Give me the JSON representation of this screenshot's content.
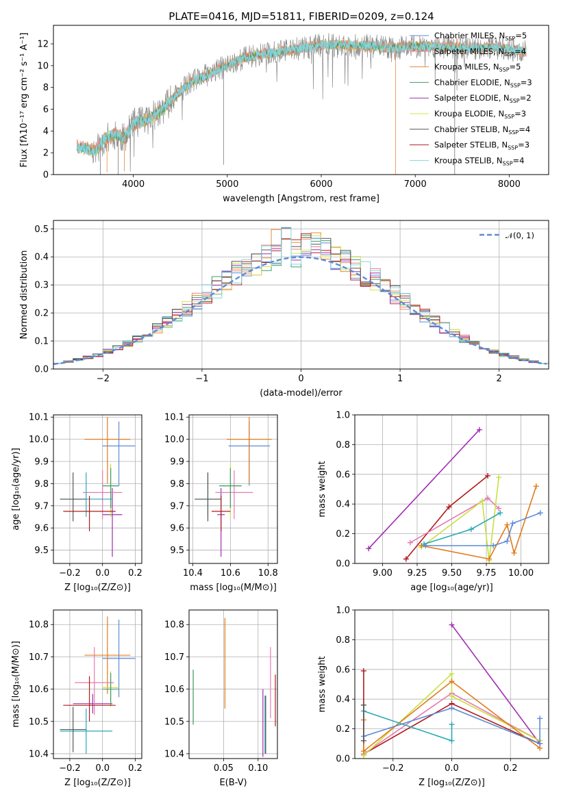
{
  "title": "PLATE=0416, MJD=51811, FIBERID=0209, z=0.124",
  "colors": {
    "chabrier_miles": "#5b8bd6",
    "salpeter_miles": "#e77f7f",
    "kroupa_miles": "#e8893a",
    "chabrier_elodie": "#3c9c6a",
    "salpeter_elodie": "#9b2fae",
    "kroupa_elodie": "#d7e34a",
    "chabrier_stelib": "#555555",
    "salpeter_stelib": "#b01f26",
    "kroupa_stelib": "#86d3dd",
    "grid": "#b0b0b0",
    "normal_curve": "#5b8bd6",
    "mw_blue": "#5b8bd6",
    "mw_orange": "#e07b1c",
    "mw_purple": "#a02ab2",
    "mw_red": "#b01a1a",
    "mw_pink": "#e57ab0",
    "mw_lime": "#c9df3e",
    "mw_teal": "#28a8b6"
  },
  "legend_spectrum": [
    {
      "text": "Chabrier MILES, N",
      "sub": "SSP",
      "suffix": "=5",
      "color": "#5b8bd6"
    },
    {
      "text": "Salpeter MILES, N",
      "sub": "SSP",
      "suffix": "=4",
      "color": "#e77f7f"
    },
    {
      "text": "Kroupa MILES, N",
      "sub": "SSP",
      "suffix": "=5",
      "color": "#e8893a"
    },
    {
      "text": "Chabrier ELODIE, N",
      "sub": "SSP",
      "suffix": "=3",
      "color": "#3c9c6a"
    },
    {
      "text": "Salpeter ELODIE, N",
      "sub": "SSP",
      "suffix": "=2",
      "color": "#9b2fae"
    },
    {
      "text": "Kroupa ELODIE, N",
      "sub": "SSP",
      "suffix": "=3",
      "color": "#d7e34a"
    },
    {
      "text": "Chabrier STELIB, N",
      "sub": "SSP",
      "suffix": "=4",
      "color": "#555555"
    },
    {
      "text": "Salpeter STELIB, N",
      "sub": "SSP",
      "suffix": "=3",
      "color": "#b01f26"
    },
    {
      "text": "Kroupa STELIB, N",
      "sub": "SSP",
      "suffix": "=4",
      "color": "#86d3dd"
    }
  ],
  "chart_data": [
    {
      "id": "spectrum",
      "type": "line",
      "xlabel": "wavelength [Angstrom, rest frame]",
      "ylabel": "Flux [fλ10⁻¹⁷ erg cm⁻² s⁻¹ A⁻¹]",
      "xlim": [
        3150,
        8420
      ],
      "ylim": [
        0,
        13.7
      ],
      "xticks": [
        4000,
        5000,
        6000,
        7000,
        8000
      ],
      "yticks": [
        0,
        2,
        4,
        6,
        8,
        10,
        12
      ],
      "grid": false,
      "legend": "upper right",
      "continuum": [
        [
          3400,
          2.6
        ],
        [
          3600,
          2.2
        ],
        [
          3700,
          3.3
        ],
        [
          3800,
          3.7
        ],
        [
          3900,
          3.3
        ],
        [
          4000,
          4.7
        ],
        [
          4150,
          5.0
        ],
        [
          4300,
          5.9
        ],
        [
          4400,
          6.8
        ],
        [
          4600,
          8.4
        ],
        [
          4800,
          9.2
        ],
        [
          5000,
          10.0
        ],
        [
          5200,
          10.8
        ],
        [
          5500,
          11.2
        ],
        [
          5800,
          11.6
        ],
        [
          6000,
          11.9
        ],
        [
          6200,
          11.9
        ],
        [
          6500,
          11.8
        ],
        [
          6800,
          11.6
        ],
        [
          7000,
          11.8
        ],
        [
          7300,
          11.7
        ],
        [
          7600,
          11.6
        ],
        [
          7800,
          11.7
        ],
        [
          8000,
          11.5
        ],
        [
          8150,
          11.3
        ]
      ],
      "features": [
        [
          3650,
          0
        ],
        [
          3720,
          0.2
        ],
        [
          3840,
          0
        ],
        [
          3905,
          0.3
        ],
        [
          4960,
          0.9
        ],
        [
          6790,
          0
        ],
        [
          7420,
          0
        ],
        [
          7440,
          12.6
        ]
      ]
    },
    {
      "id": "residuals",
      "type": "histogram",
      "xlabel": "(data-model)/error",
      "ylabel": "Normed distribution",
      "xlim": [
        -2.5,
        2.5
      ],
      "ylim": [
        0,
        0.53
      ],
      "xticks": [
        -2,
        -1,
        0,
        1,
        2
      ],
      "yticks": [
        0.0,
        0.1,
        0.2,
        0.3,
        0.4,
        0.5
      ],
      "grid": true,
      "legend": "upper right",
      "curve_label": "𝒩(0, 1)",
      "bin_width": 0.1,
      "peak_values": [
        0.51,
        0.49,
        0.47,
        0.47,
        0.46,
        0.45,
        0.41,
        0.41,
        0.41,
        0.4,
        0.39
      ]
    },
    {
      "id": "age_vs_z",
      "type": "errorbar",
      "xlabel": "Z [log₁₀(Z/Z⊙)]",
      "ylabel": "age  [log₁₀(age/yr)]",
      "xlim": [
        -0.3,
        0.24
      ],
      "ylim": [
        9.44,
        10.11
      ],
      "xticks": [
        -0.2,
        0.0,
        0.2
      ],
      "yticks": [
        9.5,
        9.6,
        9.7,
        9.8,
        9.9,
        10.0,
        10.1
      ],
      "grid": true,
      "points": [
        {
          "x": 0.1,
          "xerr": 0.1,
          "y": 9.97,
          "yerr_lo": 0.18,
          "yerr_hi": 0.11,
          "color": "#5b8bd6"
        },
        {
          "x": 0.03,
          "xerr": 0.14,
          "y": 10.0,
          "yerr_lo": 0.2,
          "yerr_hi": 0.1,
          "color": "#e07b1c"
        },
        {
          "x": 0.06,
          "xerr": 0.06,
          "y": 9.66,
          "yerr_lo": 0.19,
          "yerr_hi": 0.12,
          "color": "#a02ab2"
        },
        {
          "x": 0.0,
          "xerr": 0.12,
          "y": 9.76,
          "yerr_lo": 0.12,
          "yerr_hi": 0.1,
          "color": "#e57ab0"
        },
        {
          "x": 0.05,
          "xerr": 0.05,
          "y": 9.79,
          "yerr_lo": 0.14,
          "yerr_hi": 0.1,
          "color": "#c9df3e"
        },
        {
          "x": 0.05,
          "xerr": 0.05,
          "y": 9.79,
          "yerr_lo": 0.1,
          "yerr_hi": 0.08,
          "color": "#3c9c6a"
        },
        {
          "x": -0.1,
          "xerr": 0.16,
          "y": 9.73,
          "yerr_lo": 0.08,
          "yerr_hi": 0.12,
          "color": "#28a8b6"
        },
        {
          "x": -0.18,
          "xerr": 0.08,
          "y": 9.73,
          "yerr_lo": 0.1,
          "yerr_hi": 0.12,
          "color": "#555555"
        },
        {
          "x": -0.08,
          "xerr": 0.16,
          "y": 9.675,
          "yerr_lo": 0.09,
          "yerr_hi": 0.07,
          "color": "#b01a1a"
        }
      ]
    },
    {
      "id": "age_vs_mass",
      "type": "errorbar",
      "xlabel": "mass [log₁₀(M/M⊙)]",
      "ylabel": "",
      "xlim": [
        10.38,
        10.85
      ],
      "ylim": [
        9.44,
        10.11
      ],
      "xticks": [
        10.4,
        10.6,
        10.8
      ],
      "yticks": [
        9.5,
        9.6,
        9.7,
        9.8,
        9.9,
        10.0,
        10.1
      ],
      "grid": true,
      "points": [
        {
          "x": 10.7,
          "xerr": 0.11,
          "y": 9.97,
          "yerr_lo": 0.18,
          "yerr_hi": 0.11,
          "color": "#5b8bd6"
        },
        {
          "x": 10.7,
          "xerr": 0.12,
          "y": 10.0,
          "yerr_lo": 0.2,
          "yerr_hi": 0.1,
          "color": "#e07b1c"
        },
        {
          "x": 10.55,
          "xerr": 0.02,
          "y": 9.66,
          "yerr_lo": 0.19,
          "yerr_hi": 0.12,
          "color": "#a02ab2"
        },
        {
          "x": 10.62,
          "xerr": 0.1,
          "y": 9.76,
          "yerr_lo": 0.12,
          "yerr_hi": 0.1,
          "color": "#e57ab0"
        },
        {
          "x": 10.6,
          "xerr": 0.06,
          "y": 9.79,
          "yerr_lo": 0.14,
          "yerr_hi": 0.1,
          "color": "#c9df3e"
        },
        {
          "x": 10.6,
          "xerr": 0.06,
          "y": 9.79,
          "yerr_lo": 0.1,
          "yerr_hi": 0.08,
          "color": "#3c9c6a"
        },
        {
          "x": 10.48,
          "xerr": 0.07,
          "y": 9.73,
          "yerr_lo": 0.08,
          "yerr_hi": 0.12,
          "color": "#28a8b6"
        },
        {
          "x": 10.48,
          "xerr": 0.07,
          "y": 9.73,
          "yerr_lo": 0.1,
          "yerr_hi": 0.12,
          "color": "#555555"
        },
        {
          "x": 10.55,
          "xerr": 0.05,
          "y": 9.675,
          "yerr_lo": 0.09,
          "yerr_hi": 0.07,
          "color": "#b01a1a"
        }
      ]
    },
    {
      "id": "mass_weight_vs_age",
      "type": "line",
      "xlabel": "age  [log₁₀(age/yr)]",
      "ylabel": "mass weight",
      "xlim": [
        8.8,
        10.2
      ],
      "ylim": [
        0.0,
        1.0
      ],
      "xticks": [
        9.0,
        9.25,
        9.5,
        9.75,
        10.0
      ],
      "yticks": [
        0.0,
        0.2,
        0.4,
        0.6,
        0.8,
        1.0
      ],
      "grid": true,
      "series": [
        {
          "color": "#a02ab2",
          "points": [
            [
              8.9,
              0.1
            ],
            [
              9.7,
              0.9
            ]
          ]
        },
        {
          "color": "#b01a1a",
          "points": [
            [
              9.17,
              0.03
            ],
            [
              9.48,
              0.38
            ],
            [
              9.76,
              0.59
            ]
          ]
        },
        {
          "color": "#e57ab0",
          "points": [
            [
              9.2,
              0.14
            ],
            [
              9.76,
              0.44
            ],
            [
              9.84,
              0.37
            ]
          ]
        },
        {
          "color": "#c9df3e",
          "points": [
            [
              9.28,
              0.11
            ],
            [
              9.72,
              0.42
            ],
            [
              9.77,
              0.02
            ],
            [
              9.84,
              0.58
            ]
          ]
        },
        {
          "color": "#e07b1c",
          "points": [
            [
              9.28,
              0.12
            ],
            [
              9.77,
              0.03
            ],
            [
              9.9,
              0.26
            ],
            [
              9.95,
              0.07
            ],
            [
              10.11,
              0.52
            ]
          ]
        },
        {
          "color": "#28a8b6",
          "points": [
            [
              9.3,
              0.13
            ],
            [
              9.64,
              0.23
            ],
            [
              9.85,
              0.34
            ]
          ]
        },
        {
          "color": "#5b8bd6",
          "points": [
            [
              9.31,
              0.12
            ],
            [
              9.8,
              0.12
            ],
            [
              9.9,
              0.15
            ],
            [
              9.94,
              0.27
            ],
            [
              10.14,
              0.34
            ]
          ]
        }
      ]
    },
    {
      "id": "mass_vs_z",
      "type": "errorbar",
      "xlabel": "Z [log₁₀(Z/Z⊙)]",
      "ylabel": "mass [log₁₀(M/M⊙)]",
      "xlim": [
        -0.3,
        0.24
      ],
      "ylim": [
        10.385,
        10.845
      ],
      "xticks": [
        -0.2,
        0.0,
        0.2
      ],
      "yticks": [
        10.4,
        10.5,
        10.6,
        10.7,
        10.8
      ],
      "grid": true,
      "points": [
        {
          "x": 0.1,
          "xerr": 0.1,
          "y": 10.695,
          "yerr_lo": 0.12,
          "yerr_hi": 0.12,
          "color": "#5b8bd6"
        },
        {
          "x": 0.03,
          "xerr": 0.14,
          "y": 10.705,
          "yerr_lo": 0.12,
          "yerr_hi": 0.12,
          "color": "#e07b1c"
        },
        {
          "x": -0.06,
          "xerr": 0.12,
          "y": 10.555,
          "yerr_lo": 0.03,
          "yerr_hi": 0.03,
          "color": "#a02ab2"
        },
        {
          "x": -0.05,
          "xerr": 0.12,
          "y": 10.62,
          "yerr_lo": 0.1,
          "yerr_hi": 0.11,
          "color": "#e57ab0"
        },
        {
          "x": 0.05,
          "xerr": 0.05,
          "y": 10.605,
          "yerr_lo": 0.06,
          "yerr_hi": 0.05,
          "color": "#c9df3e"
        },
        {
          "x": 0.05,
          "xerr": 0.05,
          "y": 10.6,
          "yerr_lo": 0.05,
          "yerr_hi": 0.05,
          "color": "#3c9c6a"
        },
        {
          "x": -0.1,
          "xerr": 0.16,
          "y": 10.47,
          "yerr_lo": 0.07,
          "yerr_hi": 0.07,
          "color": "#28a8b6"
        },
        {
          "x": -0.18,
          "xerr": 0.08,
          "y": 10.475,
          "yerr_lo": 0.07,
          "yerr_hi": 0.07,
          "color": "#555555"
        },
        {
          "x": -0.08,
          "xerr": 0.16,
          "y": 10.55,
          "yerr_lo": 0.05,
          "yerr_hi": 0.09,
          "color": "#b01a1a"
        }
      ]
    },
    {
      "id": "mass_vs_ebv",
      "type": "errorbar",
      "xlabel": "E(B-V)",
      "ylabel": "",
      "xlim": [
        0.0,
        0.128
      ],
      "ylim": [
        10.385,
        10.845
      ],
      "xticks": [
        0.05,
        0.1
      ],
      "yticks": [
        10.4,
        10.5,
        10.6,
        10.7,
        10.8
      ],
      "grid": true,
      "points": [
        {
          "x": 0.006,
          "xerr": 0,
          "y": 10.57,
          "yerr_lo": 0.08,
          "yerr_hi": 0.09,
          "color": "#c9df3e"
        },
        {
          "x": 0.006,
          "xerr": 0,
          "y": 10.57,
          "yerr_lo": 0.08,
          "yerr_hi": 0.09,
          "color": "#3c9c6a"
        },
        {
          "x": 0.052,
          "xerr": 0,
          "y": 10.68,
          "yerr_lo": 0.14,
          "yerr_hi": 0.14,
          "color": "#e07b1c"
        },
        {
          "x": 0.107,
          "xerr": 0,
          "y": 10.49,
          "yerr_lo": 0.1,
          "yerr_hi": 0.11,
          "color": "#a02ab2"
        },
        {
          "x": 0.11,
          "xerr": 0,
          "y": 10.48,
          "yerr_lo": 0.08,
          "yerr_hi": 0.1,
          "color": "#28a8b6"
        },
        {
          "x": 0.111,
          "xerr": 0,
          "y": 10.48,
          "yerr_lo": 0.08,
          "yerr_hi": 0.1,
          "color": "#555555"
        },
        {
          "x": 0.118,
          "xerr": 0,
          "y": 10.61,
          "yerr_lo": 0.1,
          "yerr_hi": 0.12,
          "color": "#e57ab0"
        },
        {
          "x": 0.125,
          "xerr": 0,
          "y": 10.565,
          "yerr_lo": 0.08,
          "yerr_hi": 0.08,
          "color": "#b01a1a"
        }
      ]
    },
    {
      "id": "mass_weight_vs_z",
      "type": "line",
      "xlabel": "Z [log₁₀(Z/Z⊙)]",
      "ylabel": "mass weight",
      "xlim": [
        -0.33,
        0.33
      ],
      "ylim": [
        0.0,
        1.0
      ],
      "xticks": [
        -0.2,
        0.0,
        0.2
      ],
      "yticks": [
        0.0,
        0.2,
        0.4,
        0.6,
        0.8,
        1.0
      ],
      "grid": true,
      "series": [
        {
          "color": "#a02ab2",
          "points": [
            [
              0.0,
              0.9
            ],
            [
              0.3,
              0.1
            ]
          ]
        },
        {
          "color": "#b01a1a",
          "points": [
            [
              -0.3,
              0.59
            ],
            [
              -0.3,
              0.03
            ],
            [
              0.0,
              0.37
            ],
            [
              0.3,
              0.1
            ]
          ]
        },
        {
          "color": "#e57ab0",
          "points": [
            [
              -0.3,
              0.03
            ],
            [
              0.0,
              0.44
            ],
            [
              0.3,
              0.12
            ]
          ]
        },
        {
          "color": "#c9df3e",
          "points": [
            [
              -0.3,
              0.02
            ],
            [
              0.0,
              0.57
            ],
            [
              0.0,
              0.42
            ],
            [
              0.3,
              0.12
            ]
          ]
        },
        {
          "color": "#e07b1c",
          "points": [
            [
              -0.3,
              0.26
            ],
            [
              -0.3,
              0.05
            ],
            [
              0.0,
              0.52
            ],
            [
              0.3,
              0.07
            ]
          ]
        },
        {
          "color": "#28a8b6",
          "points": [
            [
              -0.3,
              0.32
            ],
            [
              0.0,
              0.12
            ],
            [
              0.0,
              0.23
            ]
          ]
        },
        {
          "color": "#5b8bd6",
          "points": [
            [
              -0.3,
              0.15
            ],
            [
              0.0,
              0.34
            ],
            [
              0.3,
              0.1
            ],
            [
              0.3,
              0.27
            ]
          ]
        },
        {
          "color": "#555555",
          "points": [
            [
              -0.3,
              0.36
            ],
            [
              -0.3,
              0.12
            ]
          ]
        }
      ]
    }
  ]
}
